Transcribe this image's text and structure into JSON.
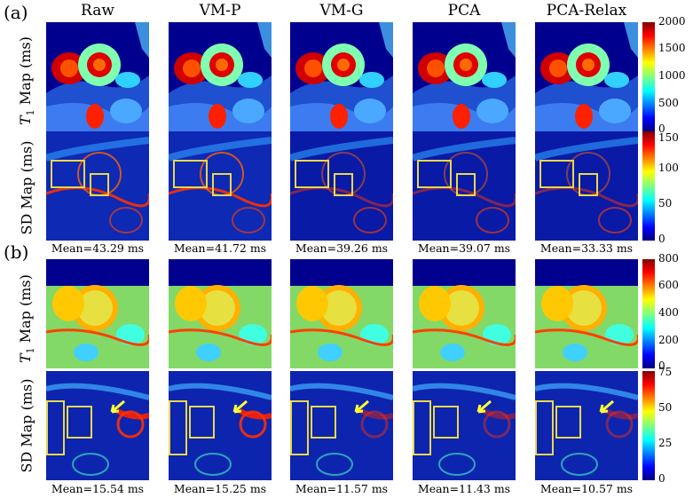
{
  "panels": {
    "a": {
      "label": "(a)",
      "row1_label_pre": "",
      "row1_label_var": "T",
      "row1_label_sub": "1",
      "row1_label_post": " Map (ms)",
      "row2_label": "SD Map (ms)",
      "means": [
        "Mean=43.29 ms",
        "Mean=41.72 ms",
        "Mean=39.26 ms",
        "Mean=39.07 ms",
        "Mean=33.33 ms"
      ],
      "colorbar1_ticks": [
        "2000",
        "1500",
        "1000",
        "500",
        "0"
      ],
      "colorbar2_ticks": [
        "150",
        "100",
        "50",
        "0"
      ]
    },
    "b": {
      "label": "(b)",
      "row1_label_var": "T",
      "row1_label_sub": "1",
      "row1_label_post": " Map (ms)",
      "row2_label": "SD Map (ms)",
      "means": [
        "Mean=15.54 ms",
        "Mean=15.25 ms",
        "Mean=11.57 ms",
        "Mean=11.43 ms",
        "Mean=10.57 ms"
      ],
      "colorbar1_ticks": [
        "800",
        "600",
        "400",
        "200",
        "0"
      ],
      "colorbar2_ticks": [
        "75",
        "50",
        "25",
        "0"
      ]
    }
  },
  "columns": [
    "Raw",
    "VM-P",
    "VM-G",
    "PCA",
    "PCA-Relax"
  ],
  "colors": {
    "jet_low": "#00007f",
    "jet_mid": "#7fff7f",
    "jet_high": "#7f0000",
    "roi_box": "#e8d84a",
    "arrow": "#ffff33"
  }
}
